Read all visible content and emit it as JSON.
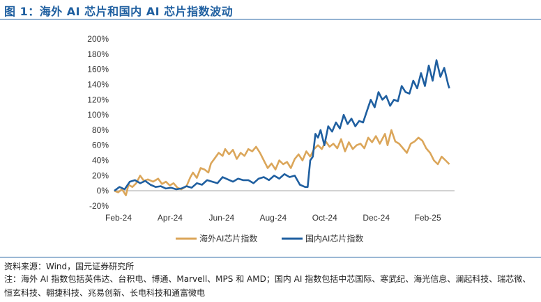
{
  "figure": {
    "title": "图 1：海外 AI 芯片和国内 AI 芯片指数波动",
    "source": "资料来源：Wind，国元证券研究所",
    "note": "注：海外 AI 指数包括英伟达、台积电、博通、Marvell、MPS 和 AMD；国内 AI 指数包括中芯国际、寒武纪、海光信息、澜起科技、瑞芯微、恒玄科技、翱捷科技、兆易创新、长电科技和通富微电"
  },
  "chart_data": {
    "type": "line",
    "title": "",
    "xlabel": "",
    "ylabel": "",
    "x_ticks": [
      "Feb-24",
      "Apr-24",
      "Jun-24",
      "Aug-24",
      "Oct-24",
      "Dec-24",
      "Feb-25"
    ],
    "y_ticks": [
      "-20%",
      "0%",
      "20%",
      "40%",
      "60%",
      "80%",
      "100%",
      "120%",
      "140%",
      "160%",
      "180%",
      "200%"
    ],
    "ylim": [
      -20,
      200
    ],
    "x_unit": "months since Feb-24",
    "xlim": [
      0,
      13.2
    ],
    "grid": false,
    "legend_position": "bottom",
    "colors": {
      "overseas": "#dba65a",
      "domestic": "#1f5fa0",
      "title": "#1f5fa0"
    },
    "series": [
      {
        "name": "海外AI芯片指数",
        "color": "#dba65a",
        "x": [
          0,
          0.15,
          0.3,
          0.45,
          0.55,
          0.7,
          0.85,
          1.0,
          1.15,
          1.3,
          1.5,
          1.7,
          1.85,
          2.0,
          2.15,
          2.3,
          2.45,
          2.6,
          2.8,
          2.95,
          3.05,
          3.2,
          3.35,
          3.5,
          3.65,
          3.75,
          3.9,
          4.05,
          4.2,
          4.3,
          4.45,
          4.6,
          4.75,
          4.9,
          5.05,
          5.2,
          5.35,
          5.5,
          5.65,
          5.8,
          5.95,
          6.1,
          6.25,
          6.4,
          6.55,
          6.7,
          6.85,
          7.0,
          7.15,
          7.3,
          7.45,
          7.6,
          7.75,
          7.9,
          8.05,
          8.2,
          8.35,
          8.5,
          8.65,
          8.8,
          8.95,
          9.1,
          9.25,
          9.4,
          9.55,
          9.7,
          9.85,
          10.0,
          10.15,
          10.3,
          10.5,
          10.6,
          10.75,
          10.9,
          11.05,
          11.2,
          11.35,
          11.5,
          11.65,
          11.8,
          11.95,
          12.1,
          12.25,
          12.4,
          12.55,
          12.7,
          12.85,
          13.0
        ],
        "values": [
          0,
          -2,
          2,
          -6,
          8,
          5,
          10,
          20,
          13,
          15,
          12,
          16,
          9,
          12,
          7,
          10,
          4,
          2,
          6,
          18,
          24,
          17,
          30,
          28,
          24,
          36,
          43,
          50,
          46,
          55,
          48,
          54,
          42,
          50,
          46,
          55,
          52,
          58,
          50,
          40,
          30,
          36,
          28,
          40,
          35,
          38,
          30,
          42,
          48,
          40,
          52,
          45,
          55,
          60,
          55,
          65,
          58,
          62,
          56,
          68,
          52,
          64,
          55,
          60,
          62,
          56,
          70,
          64,
          72,
          62,
          75,
          60,
          80,
          65,
          62,
          56,
          50,
          62,
          65,
          70,
          66,
          56,
          50,
          40,
          35,
          45,
          40,
          35
        ]
      },
      {
        "name": "国内AI芯片指数",
        "color": "#1f5fa0",
        "x": [
          0,
          0.2,
          0.4,
          0.6,
          0.8,
          1.0,
          1.2,
          1.4,
          1.6,
          1.8,
          2.0,
          2.2,
          2.4,
          2.6,
          2.8,
          3.0,
          3.2,
          3.4,
          3.6,
          3.8,
          4.0,
          4.2,
          4.4,
          4.6,
          4.8,
          5.0,
          5.2,
          5.4,
          5.6,
          5.8,
          6.0,
          6.2,
          6.4,
          6.6,
          6.8,
          7.0,
          7.2,
          7.4,
          7.5,
          7.6,
          7.7,
          7.8,
          7.9,
          8.0,
          8.15,
          8.3,
          8.45,
          8.6,
          8.75,
          8.9,
          9.05,
          9.2,
          9.35,
          9.5,
          9.65,
          9.8,
          9.95,
          10.1,
          10.25,
          10.4,
          10.55,
          10.7,
          10.85,
          11.0,
          11.15,
          11.3,
          11.45,
          11.6,
          11.75,
          11.9,
          12.05,
          12.2,
          12.35,
          12.5,
          12.65,
          12.8,
          12.95,
          13.0
        ],
        "values": [
          0,
          5,
          2,
          12,
          14,
          10,
          13,
          8,
          5,
          6,
          3,
          4,
          2,
          3,
          6,
          4,
          10,
          8,
          14,
          12,
          10,
          18,
          15,
          12,
          16,
          14,
          14,
          10,
          16,
          18,
          14,
          20,
          16,
          22,
          18,
          20,
          8,
          5,
          5,
          40,
          45,
          75,
          70,
          80,
          60,
          85,
          78,
          90,
          82,
          100,
          88,
          95,
          85,
          92,
          90,
          105,
          120,
          110,
          130,
          120,
          125,
          112,
          120,
          118,
          138,
          130,
          128,
          145,
          135,
          155,
          138,
          165,
          145,
          172,
          150,
          162,
          140,
          135
        ]
      }
    ]
  }
}
